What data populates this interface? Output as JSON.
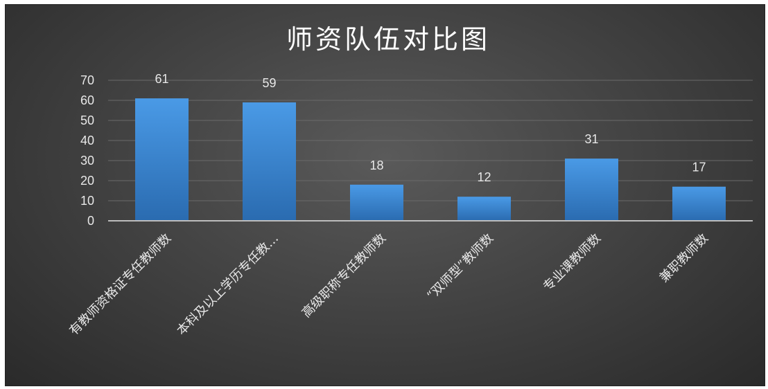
{
  "chart_data": {
    "type": "bar",
    "title": "师资队伍对比图",
    "categories": [
      "有教师资格证专任教师数",
      "本科及以上学历专任教…",
      "高级职称专任教师数",
      "“双师型”教师数",
      "专业课教师数",
      "兼职教师数"
    ],
    "values": [
      61,
      59,
      18,
      12,
      31,
      17
    ],
    "ylim": [
      0,
      70
    ],
    "yticks": [
      0,
      10,
      20,
      30,
      40,
      50,
      60,
      70
    ],
    "grid": true,
    "legend": "none",
    "data_labels": true
  },
  "colors": {
    "bar_top": "#4a9ae6",
    "bar_bottom": "#2a6bb0",
    "grid": "#6a6a6a",
    "axis": "#bdbdbd"
  }
}
